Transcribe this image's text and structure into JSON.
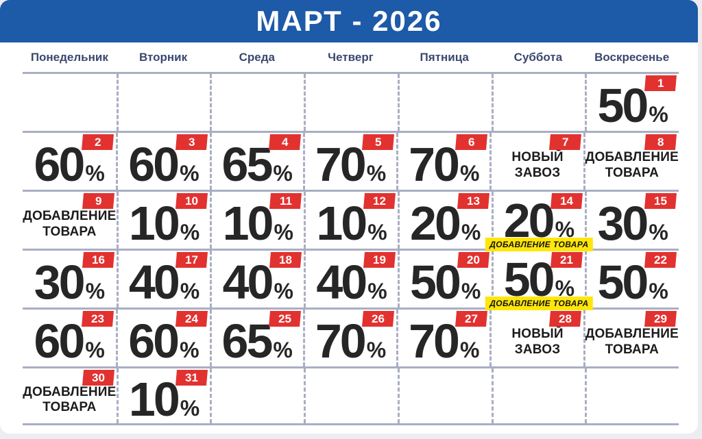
{
  "title": "МАРТ - 2026",
  "weekdays": [
    "Понедельник",
    "Вторник",
    "Среда",
    "Четверг",
    "Пятница",
    "Суббота",
    "Воскресенье"
  ],
  "colors": {
    "banner": "#1d5aa7",
    "badge": "#e23230",
    "headers": "#3a486f",
    "grid_line": "#a9aec2",
    "highlight": "#ffe60a",
    "text": "#262626"
  },
  "grid": [
    [
      null,
      null,
      null,
      null,
      null,
      null,
      {
        "day": 1,
        "kind": "percent",
        "value": "50",
        "unit": "%"
      }
    ],
    [
      {
        "day": 2,
        "kind": "percent",
        "value": "60",
        "unit": "%"
      },
      {
        "day": 3,
        "kind": "percent",
        "value": "60",
        "unit": "%"
      },
      {
        "day": 4,
        "kind": "percent",
        "value": "65",
        "unit": "%"
      },
      {
        "day": 5,
        "kind": "percent",
        "value": "70",
        "unit": "%"
      },
      {
        "day": 6,
        "kind": "percent",
        "value": "70",
        "unit": "%"
      },
      {
        "day": 7,
        "kind": "label",
        "lines": [
          "НОВЫЙ",
          "ЗАВОЗ"
        ]
      },
      {
        "day": 8,
        "kind": "label",
        "lines": [
          "ДОБАВЛЕНИЕ",
          "ТОВАРА"
        ]
      }
    ],
    [
      {
        "day": 9,
        "kind": "label",
        "lines": [
          "ДОБАВЛЕНИЕ",
          "ТОВАРА"
        ]
      },
      {
        "day": 10,
        "kind": "percent",
        "value": "10",
        "unit": "%"
      },
      {
        "day": 11,
        "kind": "percent",
        "value": "10",
        "unit": "%"
      },
      {
        "day": 12,
        "kind": "percent",
        "value": "10",
        "unit": "%"
      },
      {
        "day": 13,
        "kind": "percent",
        "value": "20",
        "unit": "%"
      },
      {
        "day": 14,
        "kind": "percent",
        "value": "20",
        "unit": "%",
        "tag": "ДОБАВЛЕНИЕ ТОВАРА"
      },
      {
        "day": 15,
        "kind": "percent",
        "value": "30",
        "unit": "%"
      }
    ],
    [
      {
        "day": 16,
        "kind": "percent",
        "value": "30",
        "unit": "%"
      },
      {
        "day": 17,
        "kind": "percent",
        "value": "40",
        "unit": "%"
      },
      {
        "day": 18,
        "kind": "percent",
        "value": "40",
        "unit": "%"
      },
      {
        "day": 19,
        "kind": "percent",
        "value": "40",
        "unit": "%"
      },
      {
        "day": 20,
        "kind": "percent",
        "value": "50",
        "unit": "%"
      },
      {
        "day": 21,
        "kind": "percent",
        "value": "50",
        "unit": "%",
        "tag": "ДОБАВЛЕНИЕ ТОВАРА"
      },
      {
        "day": 22,
        "kind": "percent",
        "value": "50",
        "unit": "%"
      }
    ],
    [
      {
        "day": 23,
        "kind": "percent",
        "value": "60",
        "unit": "%"
      },
      {
        "day": 24,
        "kind": "percent",
        "value": "60",
        "unit": "%"
      },
      {
        "day": 25,
        "kind": "percent",
        "value": "65",
        "unit": "%"
      },
      {
        "day": 26,
        "kind": "percent",
        "value": "70",
        "unit": "%"
      },
      {
        "day": 27,
        "kind": "percent",
        "value": "70",
        "unit": "%"
      },
      {
        "day": 28,
        "kind": "label",
        "lines": [
          "НОВЫЙ",
          "ЗАВОЗ"
        ]
      },
      {
        "day": 29,
        "kind": "label",
        "lines": [
          "ДОБАВЛЕНИЕ",
          "ТОВАРА"
        ]
      }
    ],
    [
      {
        "day": 30,
        "kind": "label",
        "lines": [
          "ДОБАВЛЕНИЕ",
          "ТОВАРА"
        ]
      },
      {
        "day": 31,
        "kind": "percent",
        "value": "10",
        "unit": "%"
      },
      null,
      null,
      null,
      null,
      null
    ]
  ]
}
